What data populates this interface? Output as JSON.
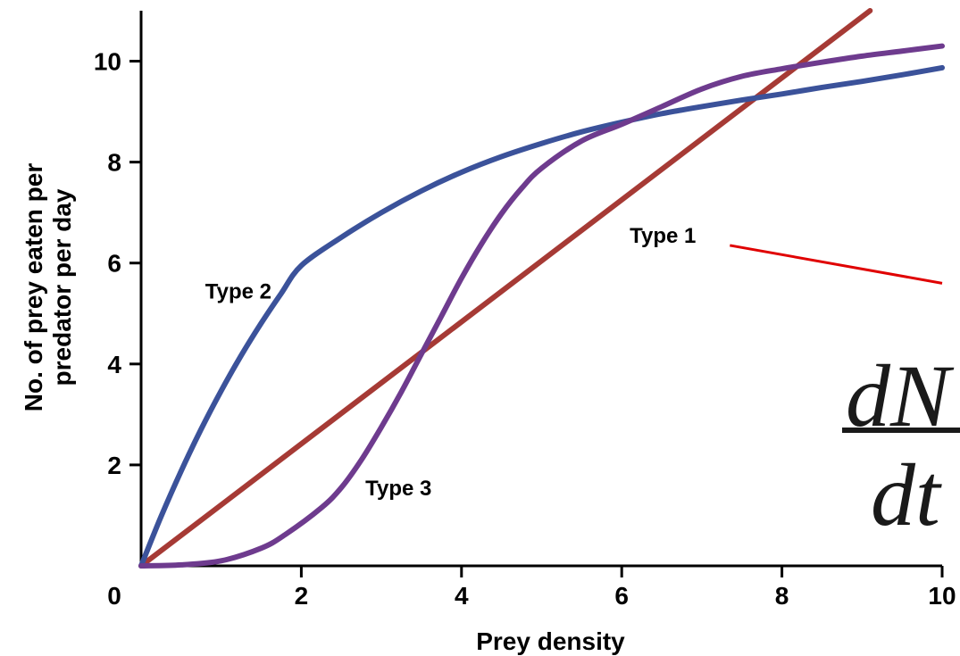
{
  "chart_data": {
    "type": "line",
    "title": "",
    "xlabel": "Prey density",
    "ylabel": "No. of prey eaten per predator per day",
    "ylabel_lines": [
      "No. of prey eaten per",
      "predator per day"
    ],
    "xlim": [
      0,
      10
    ],
    "ylim": [
      0,
      11
    ],
    "x_ticks": [
      0,
      2,
      4,
      6,
      8,
      10
    ],
    "y_ticks": [
      2,
      4,
      6,
      8,
      10
    ],
    "grid": false,
    "legend": "none (labels placed on curves)",
    "series": [
      {
        "name": "Type 1",
        "color": "#a63a35",
        "x": [
          0,
          9.1
        ],
        "y": [
          0,
          11
        ]
      },
      {
        "name": "Type 2",
        "color": "#3b529a",
        "x": [
          0,
          0.25,
          0.5,
          0.75,
          1,
          1.25,
          1.5,
          1.75,
          2,
          2.5,
          3,
          3.5,
          4,
          4.5,
          5,
          5.5,
          6,
          6.5,
          7,
          7.5,
          8,
          8.5,
          9,
          9.5,
          10
        ],
        "y": [
          0,
          0.98,
          1.88,
          2.71,
          3.47,
          4.17,
          4.81,
          5.4,
          5.95,
          6.51,
          7.0,
          7.43,
          7.8,
          8.11,
          8.37,
          8.6,
          8.79,
          8.96,
          9.1,
          9.23,
          9.35,
          9.48,
          9.6,
          9.73,
          9.87
        ]
      },
      {
        "name": "Type 3",
        "color": "#6e3b8e",
        "x": [
          0,
          0.5,
          1,
          1.5,
          1.8,
          2.25,
          2.5,
          2.75,
          3,
          3.25,
          3.5,
          3.75,
          4,
          4.25,
          4.5,
          4.75,
          5,
          5.5,
          6,
          6.5,
          7,
          7.5,
          8,
          8.5,
          9,
          9.5,
          10
        ],
        "y": [
          0,
          0.02,
          0.1,
          0.35,
          0.62,
          1.15,
          1.55,
          2.1,
          2.75,
          3.45,
          4.2,
          4.95,
          5.7,
          6.38,
          6.98,
          7.48,
          7.88,
          8.42,
          8.75,
          9.1,
          9.45,
          9.7,
          9.85,
          9.98,
          10.1,
          10.2,
          10.3
        ]
      }
    ],
    "annotations": [
      {
        "text": "Type 1",
        "x": 6.1,
        "y": 6.4
      },
      {
        "text": "Type 2",
        "x": 0.8,
        "y": 5.3
      },
      {
        "text": "Type 3",
        "x": 2.8,
        "y": 1.4
      }
    ],
    "pointer": {
      "color": "#e00000",
      "from": [
        7.35,
        6.35
      ],
      "to": [
        10,
        5.6
      ]
    },
    "equation": {
      "numerator": "dN",
      "denominator": "dt"
    },
    "colors": {
      "axis": "#000000",
      "fraction_bar": "#1a1a1a"
    }
  }
}
